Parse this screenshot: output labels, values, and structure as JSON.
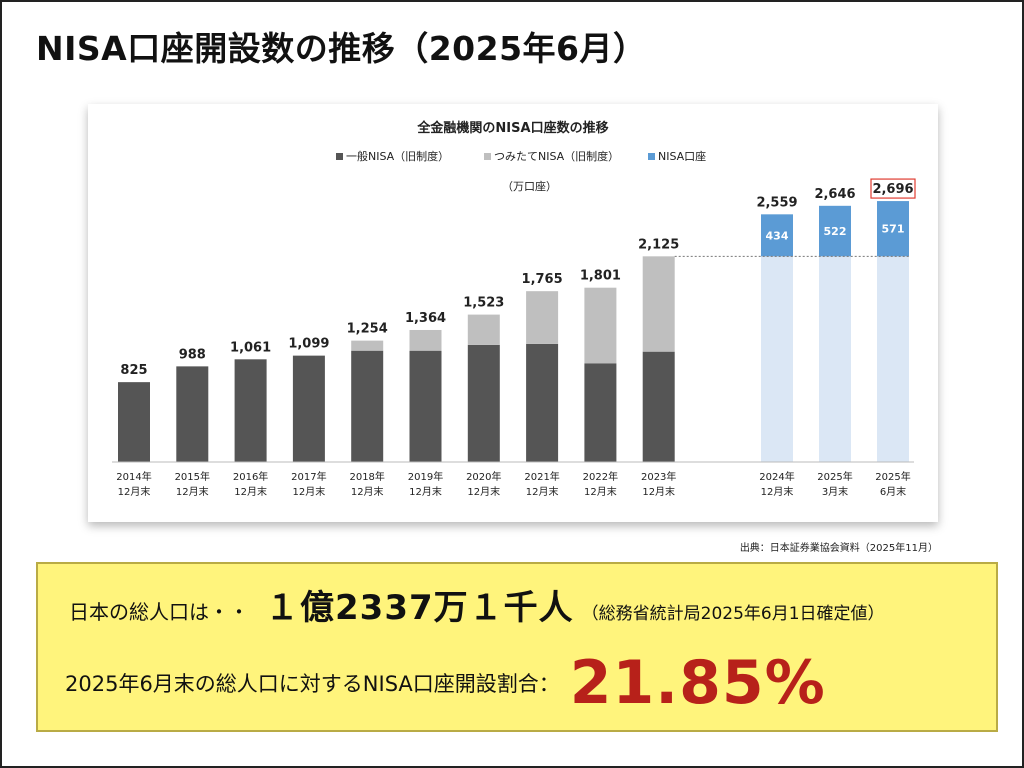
{
  "slide": {
    "title": "NISA口座開設数の推移（2025年6月）",
    "source_note": "出典：日本証券業協会資料（2025年11月）"
  },
  "summary": {
    "population_label": "日本の総人口は・・",
    "population_value": "１億2337万１千人",
    "population_source": "（総務省統計局2025年6月1日確定値）",
    "ratio_label": "2025年6月末の総人口に対するNISA口座開設割合：",
    "ratio_value": "21.85%"
  },
  "chart_data": {
    "type": "bar",
    "title": "全金融機関のNISA口座数の推移",
    "unit_label": "（万口座）",
    "categories": [
      [
        "2014年",
        "12月末"
      ],
      [
        "2015年",
        "12月末"
      ],
      [
        "2016年",
        "12月末"
      ],
      [
        "2017年",
        "12月末"
      ],
      [
        "2018年",
        "12月末"
      ],
      [
        "2019年",
        "12月末"
      ],
      [
        "2020年",
        "12月末"
      ],
      [
        "2021年",
        "12月末"
      ],
      [
        "2022年",
        "12月末"
      ],
      [
        "2023年",
        "12月末"
      ],
      [
        "2024年",
        "12月末"
      ],
      [
        "2025年",
        "3月末"
      ],
      [
        "2025年",
        "6月末"
      ]
    ],
    "series": [
      {
        "name": "一般NISA（旧制度）",
        "color": "#555555",
        "values": [
          825,
          988,
          1061,
          1099,
          1150,
          1150,
          1210,
          1220,
          1020,
          1140,
          null,
          null,
          null
        ]
      },
      {
        "name": "つみたてNISA（旧制度）",
        "color": "#bfbfbf",
        "values": [
          0,
          0,
          0,
          0,
          104,
          214,
          313,
          545,
          781,
          985,
          null,
          null,
          null
        ]
      },
      {
        "name": "NISA口座",
        "color": "#5b9bd5",
        "values": [
          null,
          null,
          null,
          null,
          null,
          null,
          null,
          null,
          null,
          null,
          434,
          522,
          571
        ]
      }
    ],
    "base_2023_carryover": {
      "color": "#dbe7f5",
      "value": 2125
    },
    "totals": [
      "825",
      "988",
      "1,061",
      "1,099",
      "1,254",
      "1,364",
      "1,523",
      "1,765",
      "1,801",
      "2,125",
      "2,559",
      "2,646",
      "2,696"
    ],
    "highlighted_total_index": 12,
    "highlight_color": "#e03c31",
    "ylim": [
      0,
      2800
    ],
    "grid": false,
    "legend_position": "top"
  }
}
